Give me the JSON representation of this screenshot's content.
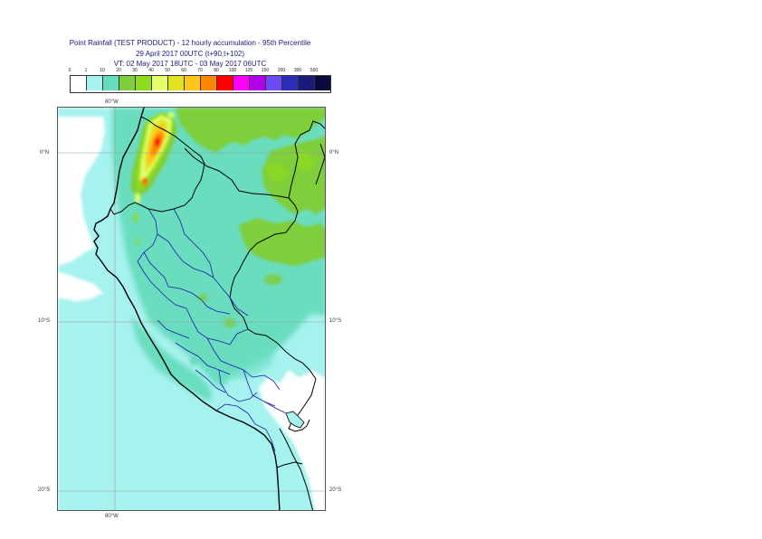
{
  "title": {
    "line1": "Point Rainfall (TEST PRODUCT) - 12 hourly accumulation - 95th Percentile",
    "line2": "29 April 2017 00UTC (t+90,t+102)",
    "line3": "VT: 02 May 2017 18UTC - 03 May 2017 06UTC"
  },
  "legend": {
    "labels": [
      "0",
      "1",
      "10",
      "20",
      "30",
      "40",
      "50",
      "60",
      "70",
      "80",
      "100",
      "125",
      "150",
      "200",
      "300",
      "500"
    ],
    "colors": [
      "#ffffff",
      "#a6f2ee",
      "#66dcbc",
      "#7fce3b",
      "#8fdb1f",
      "#e4ff6a",
      "#e2e220",
      "#ffc518",
      "#ff8400",
      "#ff0000",
      "#ff00ff",
      "#b400e6",
      "#6c4cf2",
      "#2c2cb8",
      "#1a1a7a",
      "#0a0a3c"
    ]
  },
  "axes": {
    "lon_top": "80°W",
    "lon_bottom": "80°W",
    "lat_0_left": "0°N",
    "lat_0_right": "0°N",
    "lat_10_left": "10°S",
    "lat_10_right": "10°S",
    "lat_20_left": "20°S",
    "lat_20_right": "20°S"
  }
}
